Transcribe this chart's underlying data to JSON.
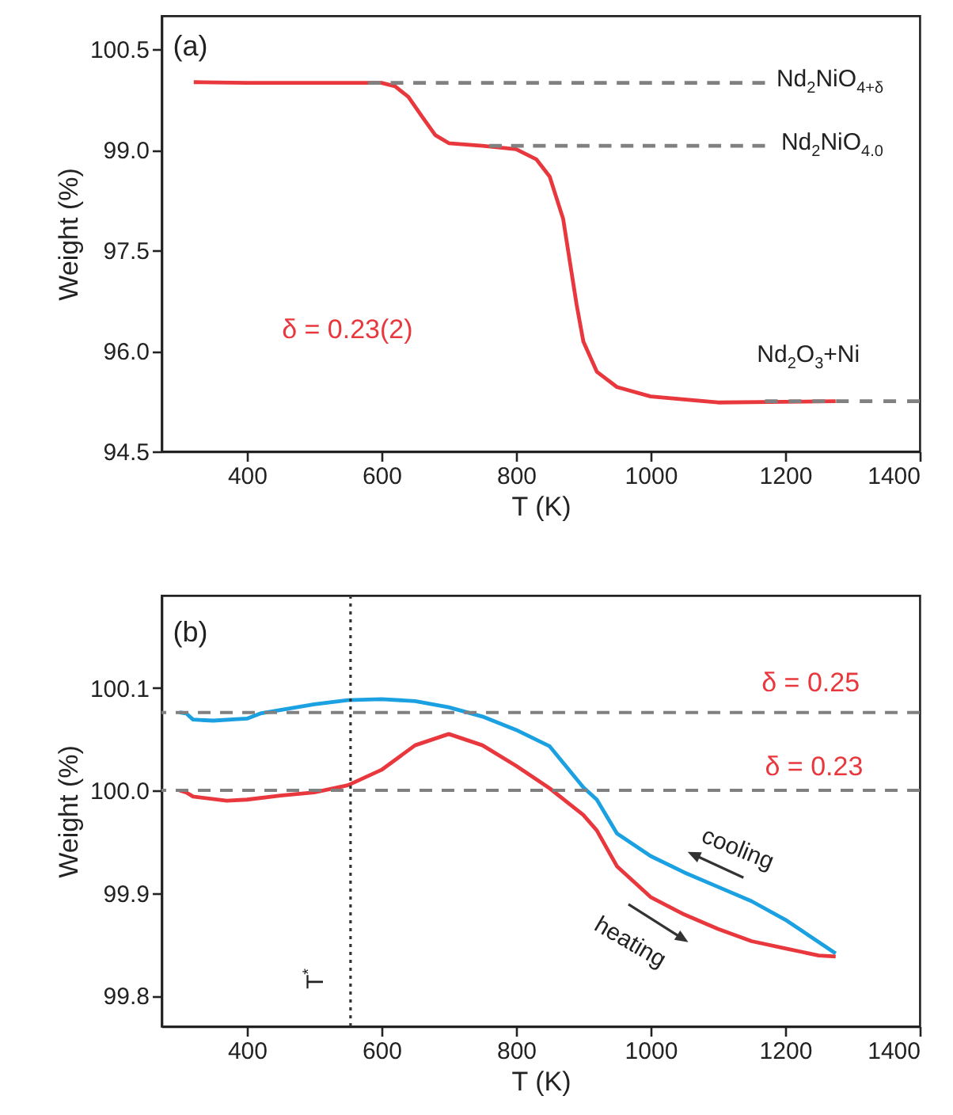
{
  "chart_data": [
    {
      "type": "line",
      "xlabel": "T (K)",
      "ylabel": "Weight (%)",
      "xlim": [
        273,
        1400
      ],
      "ylim": [
        94.5,
        101.0
      ],
      "xticks": [
        400,
        600,
        800,
        1000,
        1200,
        1400
      ],
      "yticks": [
        {
          "value": 94.5,
          "label": "94.5"
        },
        {
          "value": 96.0,
          "label": "96.0"
        },
        97.5,
        {
          "value": 99.0,
          "label": "99.0"
        },
        100.5
      ],
      "grid": false,
      "series": [
        {
          "color": "#e8383d",
          "x": [
            321,
            400,
            500,
            600,
            620,
            640,
            660,
            680,
            700,
            750,
            800,
            830,
            850,
            870,
            880,
            890,
            900,
            920,
            950,
            1000,
            1100,
            1200,
            1275
          ],
          "values": [
            100.01,
            100.0,
            100.0,
            100.0,
            99.95,
            99.79,
            99.5,
            99.22,
            99.1,
            99.06,
            99.01,
            98.86,
            98.6,
            97.97,
            97.33,
            96.69,
            96.14,
            95.69,
            95.46,
            95.32,
            95.23,
            95.24,
            95.25
          ]
        },
        {
          "color": "#808080",
          "line_style": "dashed",
          "x": [
            580,
            1170
          ],
          "values": [
            100.0,
            100.0
          ]
        },
        {
          "color": "#808080",
          "line_style": "dashed",
          "x": [
            760,
            1170
          ],
          "values": [
            99.06,
            99.06
          ]
        },
        {
          "color": "#808080",
          "line_style": "dashed",
          "x": [
            1170,
            1400
          ],
          "values": [
            95.25,
            95.25
          ]
        }
      ],
      "annotations": [
        "(a)",
        "Nd$_{2}$NiO$_{4+δ}$",
        "Nd$_{2}$NiO$_{4.0}$",
        "Nd$_{2}$O$_{3}$+Ni",
        "δ = 0.23(2)"
      ]
    },
    {
      "type": "line",
      "xlabel": "T (K)",
      "ylabel": "Weight (%)",
      "xlim": [
        273,
        1400
      ],
      "ylim": [
        99.77,
        100.19
      ],
      "xticks": [
        400,
        600,
        800,
        1000,
        1200,
        1400
      ],
      "yticks": [
        99.8,
        99.9,
        {
          "value": 100.0,
          "label": "100.0"
        },
        100.1
      ],
      "grid": false,
      "series": [
        {
          "color": "#1ba1e2",
          "x": [
            300,
            310,
            320,
            350,
            400,
            420,
            500,
            550,
            600,
            650,
            700,
            750,
            800,
            850,
            900,
            920,
            950,
            1000,
            1050,
            1100,
            1150,
            1200,
            1250,
            1275
          ],
          "values": [
            100.076,
            100.075,
            100.069,
            100.068,
            100.07,
            100.075,
            100.084,
            100.088,
            100.089,
            100.087,
            100.081,
            100.072,
            100.059,
            100.043,
            100.003,
            99.991,
            99.958,
            99.936,
            99.92,
            99.906,
            99.892,
            99.874,
            99.852,
            99.841
          ]
        },
        {
          "color": "#e8383d",
          "x": [
            300,
            310,
            320,
            370,
            400,
            450,
            500,
            550,
            600,
            650,
            700,
            750,
            800,
            850,
            900,
            920,
            950,
            1000,
            1050,
            1100,
            1150,
            1200,
            1250,
            1275
          ],
          "values": [
            100.0,
            99.998,
            99.994,
            99.99,
            99.991,
            99.995,
            99.998,
            100.005,
            100.02,
            100.044,
            100.055,
            100.044,
            100.024,
            100.002,
            99.976,
            99.961,
            99.926,
            99.896,
            99.879,
            99.865,
            99.853,
            99.846,
            99.839,
            99.838
          ]
        }
      ],
      "ref_lines": [
        {
          "axis": "y",
          "value": 100.076,
          "color": "#808080",
          "line_style": "dashed"
        },
        {
          "axis": "y",
          "value": 100.0,
          "color": "#808080",
          "line_style": "dashed"
        },
        {
          "axis": "x",
          "value": 554,
          "label": "T$^{*}$",
          "color": "#333333",
          "line_style": "dotted"
        }
      ],
      "annotations": [
        "(b)",
        "δ = 0.25",
        "δ = 0.23",
        "cooling",
        "heating"
      ]
    }
  ]
}
